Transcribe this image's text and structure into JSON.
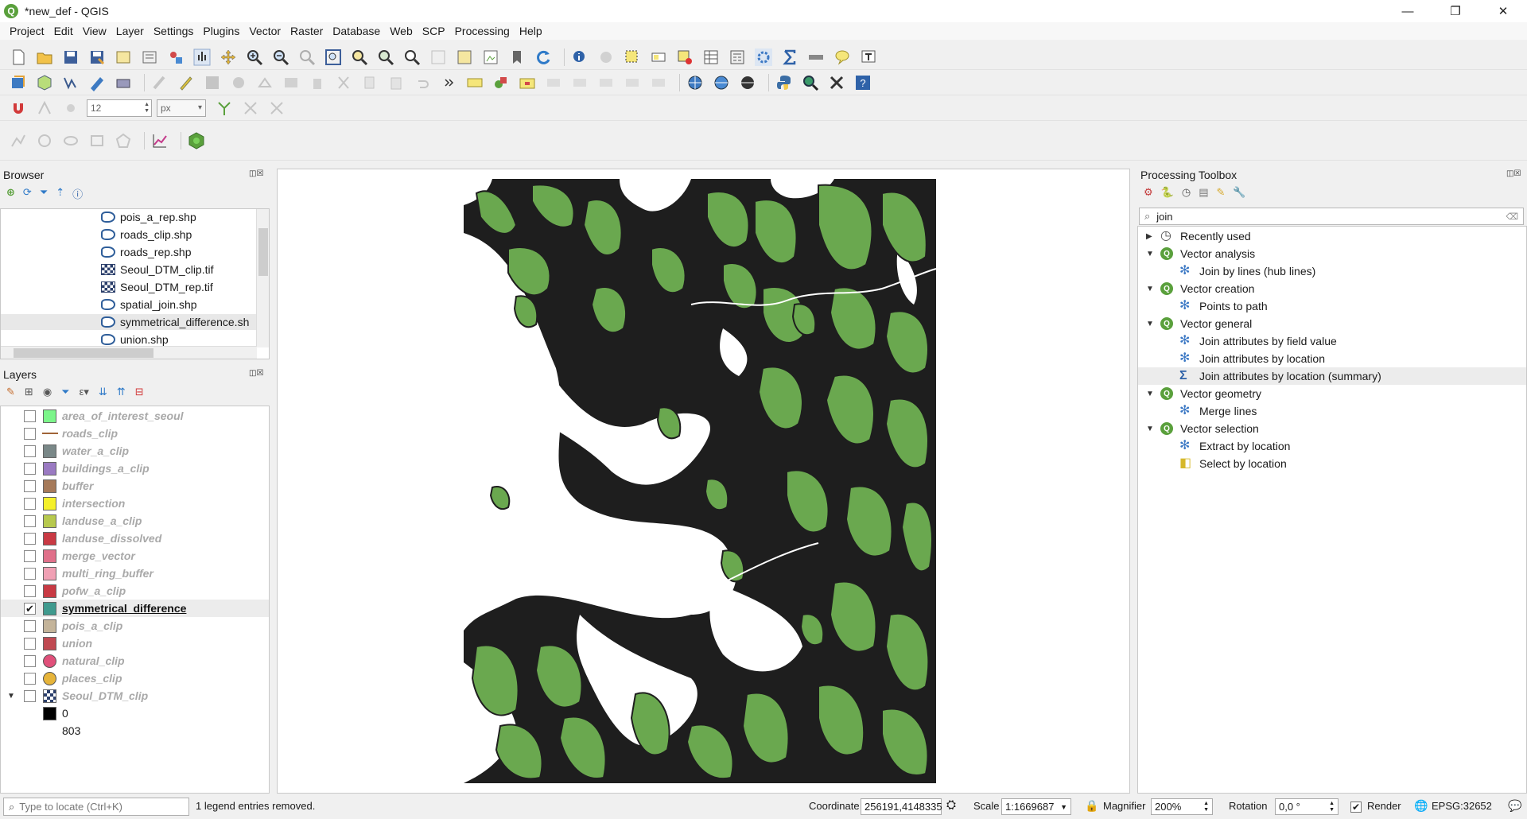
{
  "window": {
    "title": "*new_def - QGIS",
    "minimize": "—",
    "restore": "❐",
    "close": "✕"
  },
  "menu": [
    "Project",
    "Edit",
    "View",
    "Layer",
    "Settings",
    "Plugins",
    "Vector",
    "Raster",
    "Database",
    "Web",
    "SCP",
    "Processing",
    "Help"
  ],
  "toolbar": {
    "font_size_value": "12",
    "unit_value": "px"
  },
  "browser": {
    "title": "Browser",
    "items": [
      {
        "label": "pois_a_rep.shp",
        "kind": "vector"
      },
      {
        "label": "roads_clip.shp",
        "kind": "vector"
      },
      {
        "label": "roads_rep.shp",
        "kind": "vector"
      },
      {
        "label": "Seoul_DTM_clip.tif",
        "kind": "raster"
      },
      {
        "label": "Seoul_DTM_rep.tif",
        "kind": "raster"
      },
      {
        "label": "spatial_join.shp",
        "kind": "vector"
      },
      {
        "label": "symmetrical_difference.sh",
        "kind": "vector"
      },
      {
        "label": "union.shp",
        "kind": "vector"
      }
    ]
  },
  "layers": {
    "title": "Layers",
    "items": [
      {
        "name": "area_of_interest_seoul",
        "symbol": "fill",
        "color": "#7cf58a",
        "checked": false
      },
      {
        "name": "roads_clip",
        "symbol": "line",
        "color": "#a06438",
        "checked": false
      },
      {
        "name": "water_a_clip",
        "symbol": "fill",
        "color": "#7a8888",
        "checked": false
      },
      {
        "name": "buildings_a_clip",
        "symbol": "fill",
        "color": "#9a7ac2",
        "checked": false
      },
      {
        "name": "buffer",
        "symbol": "fill",
        "color": "#a67a5a",
        "checked": false
      },
      {
        "name": "intersection",
        "symbol": "fill",
        "color": "#f4f02a",
        "checked": false
      },
      {
        "name": "landuse_a_clip",
        "symbol": "fill",
        "color": "#b7c94e",
        "checked": false
      },
      {
        "name": "landuse_dissolved",
        "symbol": "fill",
        "color": "#c93a44",
        "checked": false
      },
      {
        "name": "merge_vector",
        "symbol": "fill",
        "color": "#e0708a",
        "checked": false
      },
      {
        "name": "multi_ring_buffer",
        "symbol": "fill",
        "color": "#f0a0b4",
        "checked": false
      },
      {
        "name": "pofw_a_clip",
        "symbol": "fill",
        "color": "#c83a44",
        "checked": false
      },
      {
        "name": "symmetrical_difference",
        "symbol": "fill",
        "color": "#3f9a8e",
        "checked": true
      },
      {
        "name": "pois_a_clip",
        "symbol": "fill",
        "color": "#c4b49a",
        "checked": false
      },
      {
        "name": "union",
        "symbol": "fill",
        "color": "#c04a52",
        "checked": false
      },
      {
        "name": "natural_clip",
        "symbol": "circle",
        "color": "#e0507a",
        "checked": false
      },
      {
        "name": "places_clip",
        "symbol": "circle",
        "color": "#e6b43a",
        "checked": false
      },
      {
        "name": "Seoul_DTM_clip",
        "symbol": "raster",
        "color": "#2b3f6b",
        "checked": false
      }
    ],
    "legend_min": "0",
    "legend_max": "803"
  },
  "processing": {
    "title": "Processing Toolbox",
    "search_value": "join",
    "rows": [
      {
        "label": "Recently used",
        "level": 0,
        "icon": "clock",
        "arrow": "▶"
      },
      {
        "label": "Vector analysis",
        "level": 0,
        "icon": "q",
        "arrow": "▼"
      },
      {
        "label": "Join by lines (hub lines)",
        "level": 1,
        "icon": "gear"
      },
      {
        "label": "Vector creation",
        "level": 0,
        "icon": "q",
        "arrow": "▼"
      },
      {
        "label": "Points to path",
        "level": 1,
        "icon": "gear"
      },
      {
        "label": "Vector general",
        "level": 0,
        "icon": "q",
        "arrow": "▼"
      },
      {
        "label": "Join attributes by field value",
        "level": 1,
        "icon": "gear"
      },
      {
        "label": "Join attributes by location",
        "level": 1,
        "icon": "gear"
      },
      {
        "label": "Join attributes by location (summary)",
        "level": 1,
        "icon": "sigma"
      },
      {
        "label": "Vector geometry",
        "level": 0,
        "icon": "q",
        "arrow": "▼"
      },
      {
        "label": "Merge lines",
        "level": 1,
        "icon": "gear"
      },
      {
        "label": "Vector selection",
        "level": 0,
        "icon": "q",
        "arrow": "▼"
      },
      {
        "label": "Extract by location",
        "level": 1,
        "icon": "gear"
      },
      {
        "label": "Select by location",
        "level": 1,
        "icon": "select"
      }
    ]
  },
  "status": {
    "locate_placeholder": "Type to locate (Ctrl+K)",
    "message": "1 legend entries removed.",
    "coordinate_label": "Coordinate",
    "coordinate_value": "256191,4148335",
    "scale_label": "Scale",
    "scale_value": "1:1669687",
    "magnifier_label": "Magnifier",
    "magnifier_value": "200%",
    "rotation_label": "Rotation",
    "rotation_value": "0,0 °",
    "render_label": "Render",
    "crs": "EPSG:32652"
  },
  "colors": {
    "map_fill": "#6aa84f",
    "map_outline": "#1e1e1e",
    "accent": "#5aa03c"
  }
}
